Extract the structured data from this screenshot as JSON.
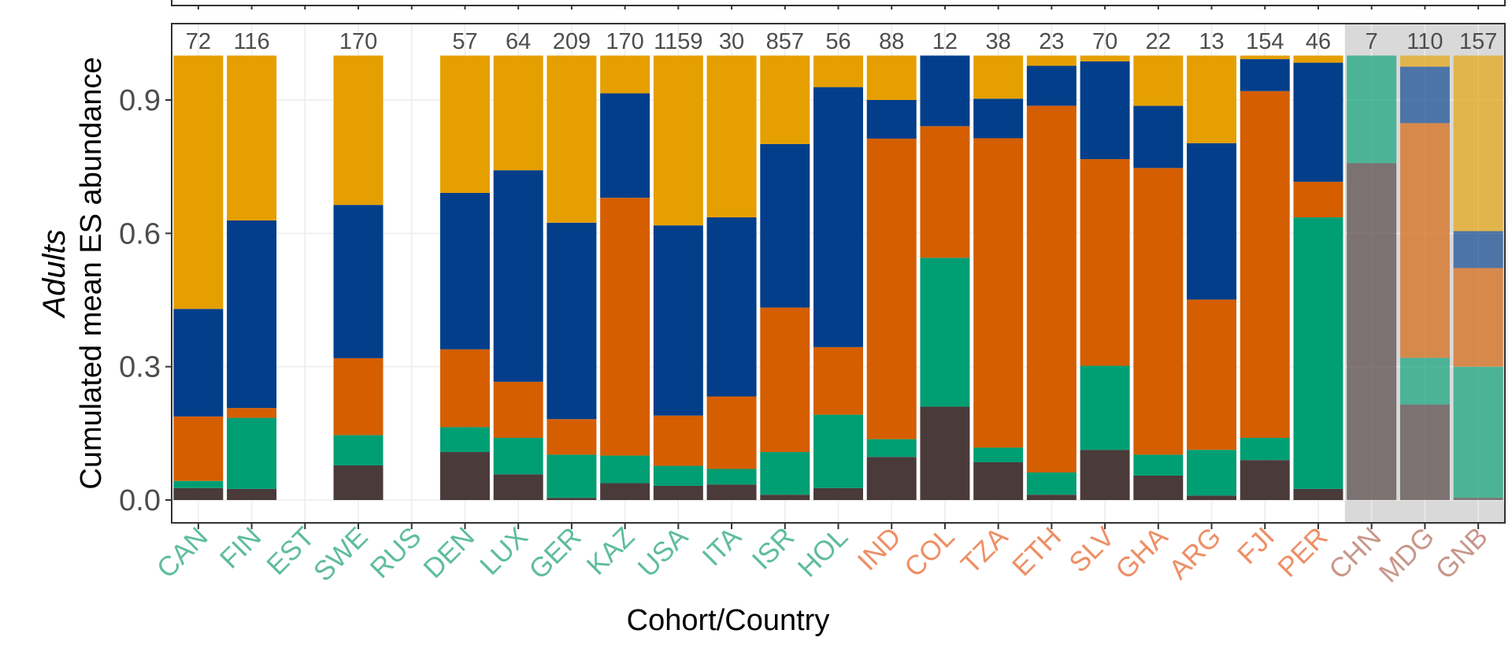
{
  "chart_data": {
    "type": "bar",
    "stacked": true,
    "ylabel_italic": "Adults",
    "ylabel": "Cumulated mean ES abundance",
    "xlabel": "Cohort/Country",
    "ylim": [
      0,
      1.05
    ],
    "yticks": [
      0.0,
      0.3,
      0.6,
      0.9
    ],
    "ytick_labels": [
      "0.0",
      "0.3",
      "0.6",
      "0.9"
    ],
    "grid": true,
    "shaded_group_background": "#d9d9d9",
    "group_colors": {
      "green": "#5fbd9c",
      "orange": "#ee8f66",
      "brown": "#c9978a"
    },
    "series_colors": [
      "#4a3a3a",
      "#009e73",
      "#d55e00",
      "#023e8a",
      "#e69f00"
    ],
    "categories": [
      "CAN",
      "FIN",
      "EST",
      "SWE",
      "RUS",
      "DEN",
      "LUX",
      "GER",
      "KAZ",
      "USA",
      "ITA",
      "ISR",
      "HOL",
      "IND",
      "COL",
      "TZA",
      "ETH",
      "SLV",
      "GHA",
      "ARG",
      "FJI",
      "PER",
      "CHN",
      "MDG",
      "GNB"
    ],
    "category_groups": [
      "green",
      "green",
      "green",
      "green",
      "green",
      "green",
      "green",
      "green",
      "green",
      "green",
      "green",
      "green",
      "green",
      "orange",
      "orange",
      "orange",
      "orange",
      "orange",
      "orange",
      "orange",
      "orange",
      "orange",
      "brown",
      "brown",
      "brown"
    ],
    "counts": [
      "72",
      "116",
      "",
      "170",
      "",
      "57",
      "64",
      "209",
      "170",
      "1159",
      "30",
      "857",
      "56",
      "88",
      "12",
      "38",
      "23",
      "70",
      "22",
      "13",
      "154",
      "46",
      "7",
      "110",
      "157"
    ],
    "faded": [
      false,
      false,
      false,
      false,
      false,
      false,
      false,
      false,
      false,
      false,
      false,
      false,
      false,
      false,
      false,
      false,
      false,
      false,
      false,
      false,
      false,
      false,
      true,
      true,
      true
    ],
    "segments": [
      [
        0.027,
        0.016,
        0.145,
        0.242,
        0.57
      ],
      [
        0.025,
        0.16,
        0.022,
        0.422,
        0.371
      ],
      [
        0,
        0,
        0,
        0,
        0
      ],
      [
        0.078,
        0.068,
        0.173,
        0.345,
        0.336
      ],
      [
        0,
        0,
        0,
        0,
        0
      ],
      [
        0.108,
        0.056,
        0.175,
        0.352,
        0.309
      ],
      [
        0.058,
        0.082,
        0.126,
        0.476,
        0.258
      ],
      [
        0.005,
        0.097,
        0.08,
        0.442,
        0.376
      ],
      [
        0.038,
        0.062,
        0.58,
        0.235,
        0.085
      ],
      [
        0.032,
        0.045,
        0.113,
        0.428,
        0.382
      ],
      [
        0.035,
        0.035,
        0.163,
        0.403,
        0.364
      ],
      [
        0.012,
        0.096,
        0.325,
        0.368,
        0.199
      ],
      [
        0.027,
        0.165,
        0.152,
        0.585,
        0.071
      ],
      [
        0.097,
        0.04,
        0.676,
        0.087,
        0.1
      ],
      [
        0.21,
        0.335,
        0.296,
        0.159,
        0.0
      ],
      [
        0.085,
        0.033,
        0.696,
        0.089,
        0.097
      ],
      [
        0.012,
        0.05,
        0.825,
        0.09,
        0.023
      ],
      [
        0.113,
        0.189,
        0.465,
        0.22,
        0.013
      ],
      [
        0.055,
        0.047,
        0.645,
        0.14,
        0.113
      ],
      [
        0.01,
        0.103,
        0.338,
        0.352,
        0.197
      ],
      [
        0.09,
        0.05,
        0.78,
        0.072,
        0.008
      ],
      [
        0.025,
        0.611,
        0.08,
        0.268,
        0.016
      ],
      [
        0.758,
        0.242,
        0.0,
        0.0,
        0.0
      ],
      [
        0.215,
        0.105,
        0.528,
        0.127,
        0.025
      ],
      [
        0.005,
        0.295,
        0.222,
        0.083,
        0.395
      ]
    ]
  }
}
